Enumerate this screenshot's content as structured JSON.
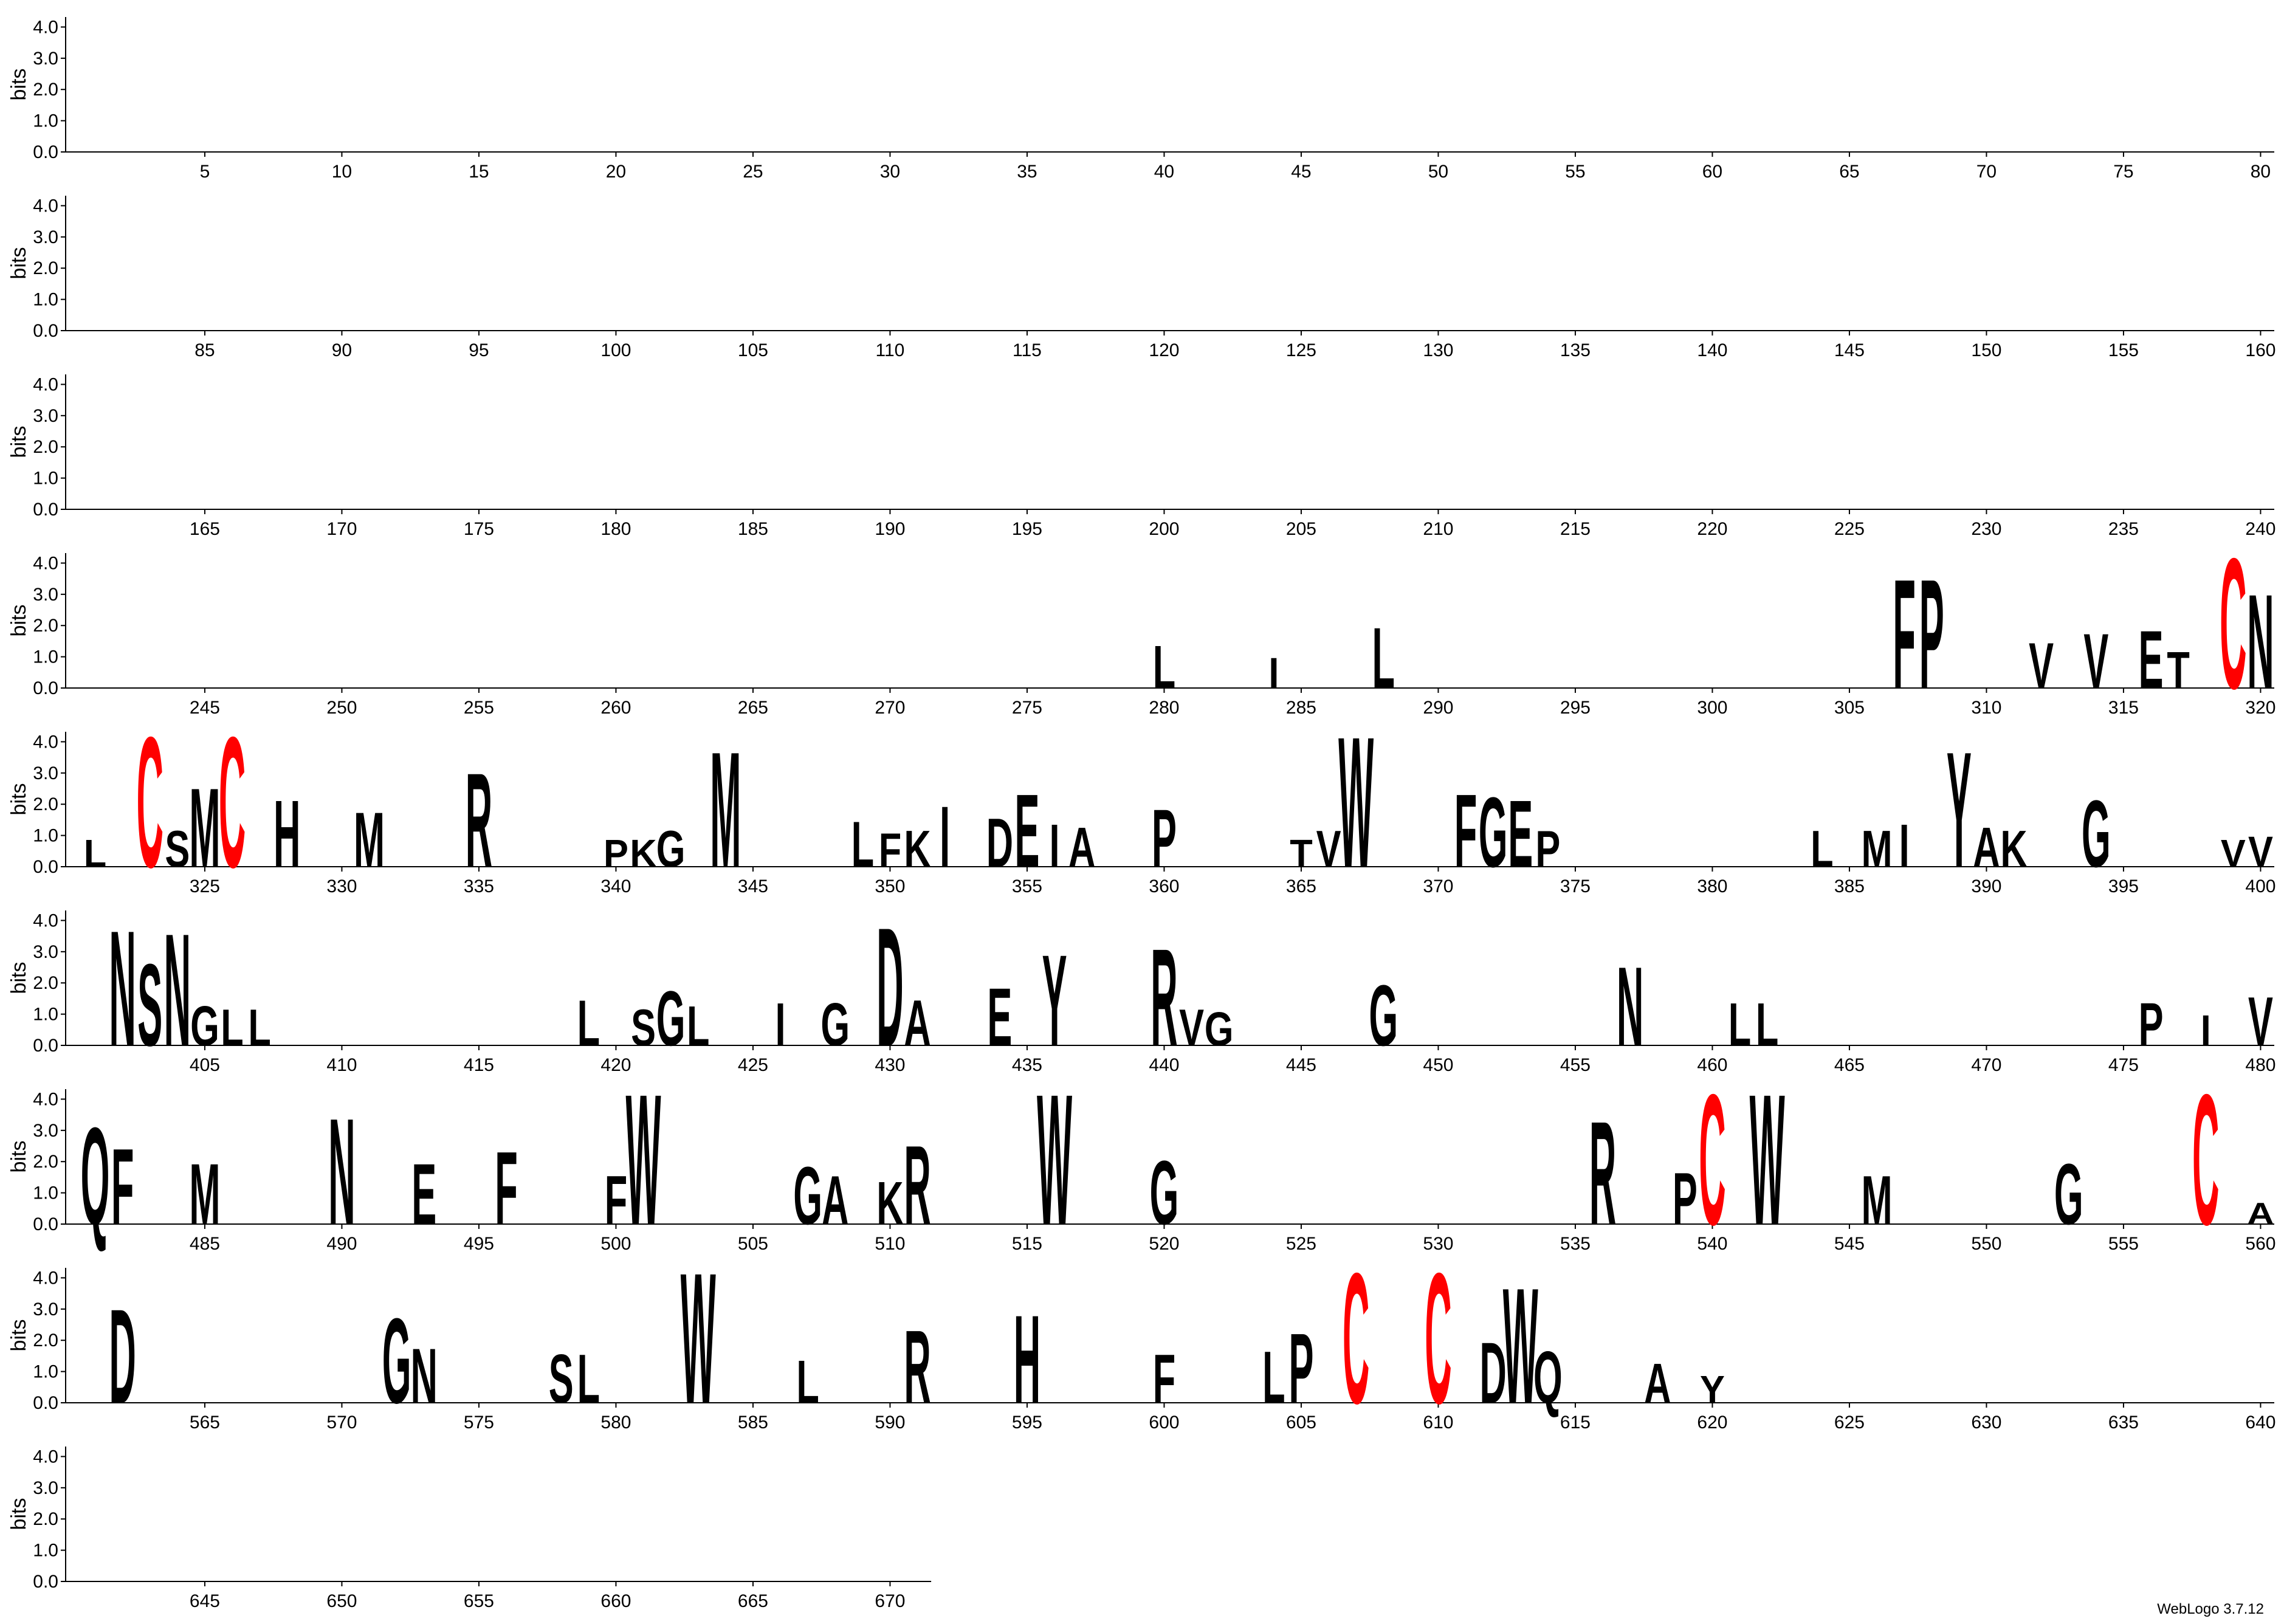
{
  "chart_data": {
    "type": "logo",
    "ylabel": "bits",
    "footer": "WebLogo 3.7.12",
    "ylim": [
      0,
      4.32
    ],
    "yticks": [
      {
        "value": 0,
        "label": "0.0"
      },
      {
        "value": 1,
        "label": "1.0"
      },
      {
        "value": 2,
        "label": "2.0"
      },
      {
        "value": 3,
        "label": "3.0"
      },
      {
        "value": 4,
        "label": "4.0"
      }
    ],
    "rows": [
      {
        "xlim": [
          1,
          80
        ],
        "xticks": [
          5,
          10,
          15,
          20,
          25,
          30,
          35,
          40,
          45,
          50,
          55,
          60,
          65,
          70,
          75,
          80
        ]
      },
      {
        "xlim": [
          81,
          160
        ],
        "xticks": [
          85,
          90,
          95,
          100,
          105,
          110,
          115,
          120,
          125,
          130,
          135,
          140,
          145,
          150,
          155,
          160
        ]
      },
      {
        "xlim": [
          161,
          240
        ],
        "xticks": [
          165,
          170,
          175,
          180,
          185,
          190,
          195,
          200,
          205,
          210,
          215,
          220,
          225,
          230,
          235,
          240
        ]
      },
      {
        "xlim": [
          241,
          320
        ],
        "xticks": [
          245,
          250,
          255,
          260,
          265,
          270,
          275,
          280,
          285,
          290,
          295,
          300,
          305,
          310,
          315,
          320
        ]
      },
      {
        "xlim": [
          321,
          400
        ],
        "xticks": [
          325,
          330,
          335,
          340,
          345,
          350,
          355,
          360,
          365,
          370,
          375,
          380,
          385,
          390,
          395,
          400
        ]
      },
      {
        "xlim": [
          401,
          480
        ],
        "xticks": [
          405,
          410,
          415,
          420,
          425,
          430,
          435,
          440,
          445,
          450,
          455,
          460,
          465,
          470,
          475,
          480
        ]
      },
      {
        "xlim": [
          481,
          560
        ],
        "xticks": [
          485,
          490,
          495,
          500,
          505,
          510,
          515,
          520,
          525,
          530,
          535,
          540,
          545,
          550,
          555,
          560
        ]
      },
      {
        "xlim": [
          561,
          640
        ],
        "xticks": [
          565,
          570,
          575,
          580,
          585,
          590,
          595,
          600,
          605,
          610,
          615,
          620,
          625,
          630,
          635,
          640
        ]
      },
      {
        "xlim": [
          641,
          671
        ],
        "xticks": [
          645,
          650,
          655,
          660,
          665,
          670
        ]
      }
    ],
    "letters": [
      {
        "position": 280,
        "letter": "L",
        "bits": 1.4,
        "color": "#000000"
      },
      {
        "position": 284,
        "letter": "I",
        "bits": 1.0,
        "color": "#000000"
      },
      {
        "position": 288,
        "letter": "L",
        "bits": 2.0,
        "color": "#000000"
      },
      {
        "position": 307,
        "letter": "F",
        "bits": 3.6,
        "color": "#000000"
      },
      {
        "position": 308,
        "letter": "P",
        "bits": 3.6,
        "color": "#000000"
      },
      {
        "position": 312,
        "letter": "V",
        "bits": 1.5,
        "color": "#000000"
      },
      {
        "position": 314,
        "letter": "V",
        "bits": 1.8,
        "color": "#000000"
      },
      {
        "position": 316,
        "letter": "E",
        "bits": 1.9,
        "color": "#000000"
      },
      {
        "position": 317,
        "letter": "T",
        "bits": 1.2,
        "color": "#000000"
      },
      {
        "position": 319,
        "letter": "C",
        "bits": 4.3,
        "color": "#ff0000"
      },
      {
        "position": 320,
        "letter": "N",
        "bits": 3.1,
        "color": "#000000"
      },
      {
        "position": 321,
        "letter": "L",
        "bits": 0.9,
        "color": "#000000"
      },
      {
        "position": 323,
        "letter": "C",
        "bits": 4.3,
        "color": "#ff0000"
      },
      {
        "position": 324,
        "letter": "S",
        "bits": 1.2,
        "color": "#000000"
      },
      {
        "position": 325,
        "letter": "M",
        "bits": 2.6,
        "color": "#000000"
      },
      {
        "position": 326,
        "letter": "C",
        "bits": 4.3,
        "color": "#ff0000"
      },
      {
        "position": 328,
        "letter": "H",
        "bits": 2.2,
        "color": "#000000"
      },
      {
        "position": 331,
        "letter": "M",
        "bits": 1.8,
        "color": "#000000"
      },
      {
        "position": 335,
        "letter": "R",
        "bits": 3.1,
        "color": "#000000"
      },
      {
        "position": 340,
        "letter": "P",
        "bits": 0.9,
        "color": "#000000"
      },
      {
        "position": 341,
        "letter": "K",
        "bits": 0.9,
        "color": "#000000"
      },
      {
        "position": 342,
        "letter": "G",
        "bits": 1.2,
        "color": "#000000"
      },
      {
        "position": 344,
        "letter": "M",
        "bits": 3.8,
        "color": "#000000"
      },
      {
        "position": 349,
        "letter": "L",
        "bits": 1.5,
        "color": "#000000"
      },
      {
        "position": 350,
        "letter": "F",
        "bits": 1.1,
        "color": "#000000"
      },
      {
        "position": 351,
        "letter": "K",
        "bits": 1.2,
        "color": "#000000"
      },
      {
        "position": 352,
        "letter": "I",
        "bits": 2.0,
        "color": "#000000"
      },
      {
        "position": 354,
        "letter": "D",
        "bits": 1.6,
        "color": "#000000"
      },
      {
        "position": 355,
        "letter": "E",
        "bits": 2.4,
        "color": "#000000"
      },
      {
        "position": 356,
        "letter": "I",
        "bits": 1.4,
        "color": "#000000"
      },
      {
        "position": 357,
        "letter": "A",
        "bits": 1.3,
        "color": "#000000"
      },
      {
        "position": 360,
        "letter": "P",
        "bits": 1.9,
        "color": "#000000"
      },
      {
        "position": 365,
        "letter": "T",
        "bits": 0.9,
        "color": "#000000"
      },
      {
        "position": 366,
        "letter": "V",
        "bits": 1.2,
        "color": "#000000"
      },
      {
        "position": 367,
        "letter": "W",
        "bits": 4.3,
        "color": "#000000"
      },
      {
        "position": 371,
        "letter": "F",
        "bits": 2.4,
        "color": "#000000"
      },
      {
        "position": 372,
        "letter": "G",
        "bits": 2.3,
        "color": "#000000"
      },
      {
        "position": 373,
        "letter": "E",
        "bits": 2.2,
        "color": "#000000"
      },
      {
        "position": 374,
        "letter": "P",
        "bits": 1.2,
        "color": "#000000"
      },
      {
        "position": 384,
        "letter": "L",
        "bits": 1.2,
        "color": "#000000"
      },
      {
        "position": 386,
        "letter": "M",
        "bits": 1.2,
        "color": "#000000"
      },
      {
        "position": 387,
        "letter": "I",
        "bits": 1.4,
        "color": "#000000"
      },
      {
        "position": 389,
        "letter": "Y",
        "bits": 3.8,
        "color": "#000000"
      },
      {
        "position": 390,
        "letter": "A",
        "bits": 1.3,
        "color": "#000000"
      },
      {
        "position": 391,
        "letter": "K",
        "bits": 1.2,
        "color": "#000000"
      },
      {
        "position": 394,
        "letter": "G",
        "bits": 2.2,
        "color": "#000000"
      },
      {
        "position": 399,
        "letter": "V",
        "bits": 0.9,
        "color": "#000000"
      },
      {
        "position": 400,
        "letter": "V",
        "bits": 1.0,
        "color": "#000000"
      },
      {
        "position": 402,
        "letter": "N",
        "bits": 3.8,
        "color": "#000000"
      },
      {
        "position": 403,
        "letter": "S",
        "bits": 2.7,
        "color": "#000000"
      },
      {
        "position": 404,
        "letter": "N",
        "bits": 3.7,
        "color": "#000000"
      },
      {
        "position": 405,
        "letter": "G",
        "bits": 1.3,
        "color": "#000000"
      },
      {
        "position": 406,
        "letter": "L",
        "bits": 1.2,
        "color": "#000000"
      },
      {
        "position": 407,
        "letter": "L",
        "bits": 1.2,
        "color": "#000000"
      },
      {
        "position": 419,
        "letter": "L",
        "bits": 1.5,
        "color": "#000000"
      },
      {
        "position": 421,
        "letter": "S",
        "bits": 1.2,
        "color": "#000000"
      },
      {
        "position": 422,
        "letter": "G",
        "bits": 1.8,
        "color": "#000000"
      },
      {
        "position": 423,
        "letter": "L",
        "bits": 1.3,
        "color": "#000000"
      },
      {
        "position": 426,
        "letter": "I",
        "bits": 1.4,
        "color": "#000000"
      },
      {
        "position": 428,
        "letter": "G",
        "bits": 1.4,
        "color": "#000000"
      },
      {
        "position": 430,
        "letter": "D",
        "bits": 3.9,
        "color": "#000000"
      },
      {
        "position": 431,
        "letter": "A",
        "bits": 1.5,
        "color": "#000000"
      },
      {
        "position": 434,
        "letter": "E",
        "bits": 1.9,
        "color": "#000000"
      },
      {
        "position": 436,
        "letter": "Y",
        "bits": 3.0,
        "color": "#000000"
      },
      {
        "position": 440,
        "letter": "R",
        "bits": 3.2,
        "color": "#000000"
      },
      {
        "position": 441,
        "letter": "V",
        "bits": 1.2,
        "color": "#000000"
      },
      {
        "position": 442,
        "letter": "G",
        "bits": 1.1,
        "color": "#000000"
      },
      {
        "position": 448,
        "letter": "G",
        "bits": 2.0,
        "color": "#000000"
      },
      {
        "position": 457,
        "letter": "N",
        "bits": 2.6,
        "color": "#000000"
      },
      {
        "position": 461,
        "letter": "L",
        "bits": 1.4,
        "color": "#000000"
      },
      {
        "position": 462,
        "letter": "L",
        "bits": 1.4,
        "color": "#000000"
      },
      {
        "position": 476,
        "letter": "P",
        "bits": 1.4,
        "color": "#000000"
      },
      {
        "position": 478,
        "letter": "I",
        "bits": 1.0,
        "color": "#000000"
      },
      {
        "position": 480,
        "letter": "V",
        "bits": 1.6,
        "color": "#000000"
      },
      {
        "position": 481,
        "letter": "Q",
        "bits": 3.2,
        "color": "#000000"
      },
      {
        "position": 482,
        "letter": "F",
        "bits": 2.5,
        "color": "#000000"
      },
      {
        "position": 485,
        "letter": "M",
        "bits": 2.0,
        "color": "#000000"
      },
      {
        "position": 490,
        "letter": "N",
        "bits": 3.5,
        "color": "#000000"
      },
      {
        "position": 493,
        "letter": "E",
        "bits": 2.0,
        "color": "#000000"
      },
      {
        "position": 496,
        "letter": "F",
        "bits": 2.4,
        "color": "#000000"
      },
      {
        "position": 500,
        "letter": "F",
        "bits": 1.6,
        "color": "#000000"
      },
      {
        "position": 501,
        "letter": "W",
        "bits": 4.3,
        "color": "#000000"
      },
      {
        "position": 507,
        "letter": "G",
        "bits": 1.9,
        "color": "#000000"
      },
      {
        "position": 508,
        "letter": "A",
        "bits": 1.6,
        "color": "#000000"
      },
      {
        "position": 510,
        "letter": "K",
        "bits": 1.4,
        "color": "#000000"
      },
      {
        "position": 511,
        "letter": "R",
        "bits": 2.6,
        "color": "#000000"
      },
      {
        "position": 516,
        "letter": "W",
        "bits": 4.3,
        "color": "#000000"
      },
      {
        "position": 520,
        "letter": "G",
        "bits": 2.1,
        "color": "#000000"
      },
      {
        "position": 536,
        "letter": "R",
        "bits": 3.4,
        "color": "#000000"
      },
      {
        "position": 539,
        "letter": "P",
        "bits": 1.7,
        "color": "#000000"
      },
      {
        "position": 540,
        "letter": "C",
        "bits": 4.3,
        "color": "#ff0000"
      },
      {
        "position": 542,
        "letter": "W",
        "bits": 4.3,
        "color": "#000000"
      },
      {
        "position": 546,
        "letter": "M",
        "bits": 1.6,
        "color": "#000000"
      },
      {
        "position": 553,
        "letter": "G",
        "bits": 2.0,
        "color": "#000000"
      },
      {
        "position": 558,
        "letter": "C",
        "bits": 4.3,
        "color": "#ff0000"
      },
      {
        "position": 560,
        "letter": "A",
        "bits": 0.7,
        "color": "#000000"
      },
      {
        "position": 562,
        "letter": "D",
        "bits": 3.1,
        "color": "#000000"
      },
      {
        "position": 572,
        "letter": "G",
        "bits": 2.8,
        "color": "#000000"
      },
      {
        "position": 573,
        "letter": "N",
        "bits": 1.8,
        "color": "#000000"
      },
      {
        "position": 578,
        "letter": "S",
        "bits": 1.6,
        "color": "#000000"
      },
      {
        "position": 579,
        "letter": "L",
        "bits": 1.6,
        "color": "#000000"
      },
      {
        "position": 583,
        "letter": "W",
        "bits": 4.3,
        "color": "#000000"
      },
      {
        "position": 587,
        "letter": "L",
        "bits": 1.4,
        "color": "#000000"
      },
      {
        "position": 591,
        "letter": "R",
        "bits": 2.4,
        "color": "#000000"
      },
      {
        "position": 595,
        "letter": "H",
        "bits": 2.9,
        "color": "#000000"
      },
      {
        "position": 600,
        "letter": "F",
        "bits": 1.6,
        "color": "#000000"
      },
      {
        "position": 604,
        "letter": "L",
        "bits": 1.7,
        "color": "#000000"
      },
      {
        "position": 605,
        "letter": "P",
        "bits": 2.3,
        "color": "#000000"
      },
      {
        "position": 607,
        "letter": "C",
        "bits": 4.3,
        "color": "#ff0000"
      },
      {
        "position": 610,
        "letter": "C",
        "bits": 4.3,
        "color": "#ff0000"
      },
      {
        "position": 612,
        "letter": "D",
        "bits": 2.0,
        "color": "#000000"
      },
      {
        "position": 613,
        "letter": "W",
        "bits": 3.8,
        "color": "#000000"
      },
      {
        "position": 614,
        "letter": "Q",
        "bits": 1.7,
        "color": "#000000"
      },
      {
        "position": 618,
        "letter": "A",
        "bits": 1.3,
        "color": "#000000"
      },
      {
        "position": 620,
        "letter": "Y",
        "bits": 0.9,
        "color": "#000000"
      }
    ]
  }
}
